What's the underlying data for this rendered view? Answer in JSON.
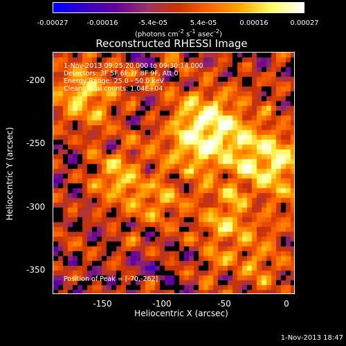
{
  "colorbar": {
    "ticks": [
      "-0.00027",
      "-0.00016",
      "-5.4e-05",
      "5.4e-05",
      "0.00016",
      "0.00027"
    ],
    "units_html": "(photons cm<sup>-2</sup> s<sup>-1</sup> asec<sup>-2</sup>)",
    "stops": [
      "#0000ff",
      "#3300cc",
      "#660099",
      "#993366",
      "#cc3300",
      "#ff6600",
      "#ffaa00",
      "#ffff66",
      "#ffffff"
    ]
  },
  "title": "Reconstructed RHESSI Image",
  "info": {
    "time": "1-Nov-2013 09:25:20.000 to 09:30:14.000",
    "detectors": "Detectors: 3F 5F 6F 7F 8F 9F, Att 0",
    "energy": "Energy Range: 25.0 - 50.0 keV",
    "clean": "Clean.   Total counts: 1.04E+04",
    "peak": "Position of Peak = [-70,-262]"
  },
  "axes": {
    "xlabel": "Heliocentric X (arcsec)",
    "ylabel": "Heliocentric Y (arcsec)",
    "xticks": [
      "-150",
      "-100",
      "-50",
      "0"
    ],
    "yticks": [
      "-200",
      "-250",
      "-300",
      "-350"
    ]
  },
  "datestamp": "1-Nov-2013 18:47"
}
